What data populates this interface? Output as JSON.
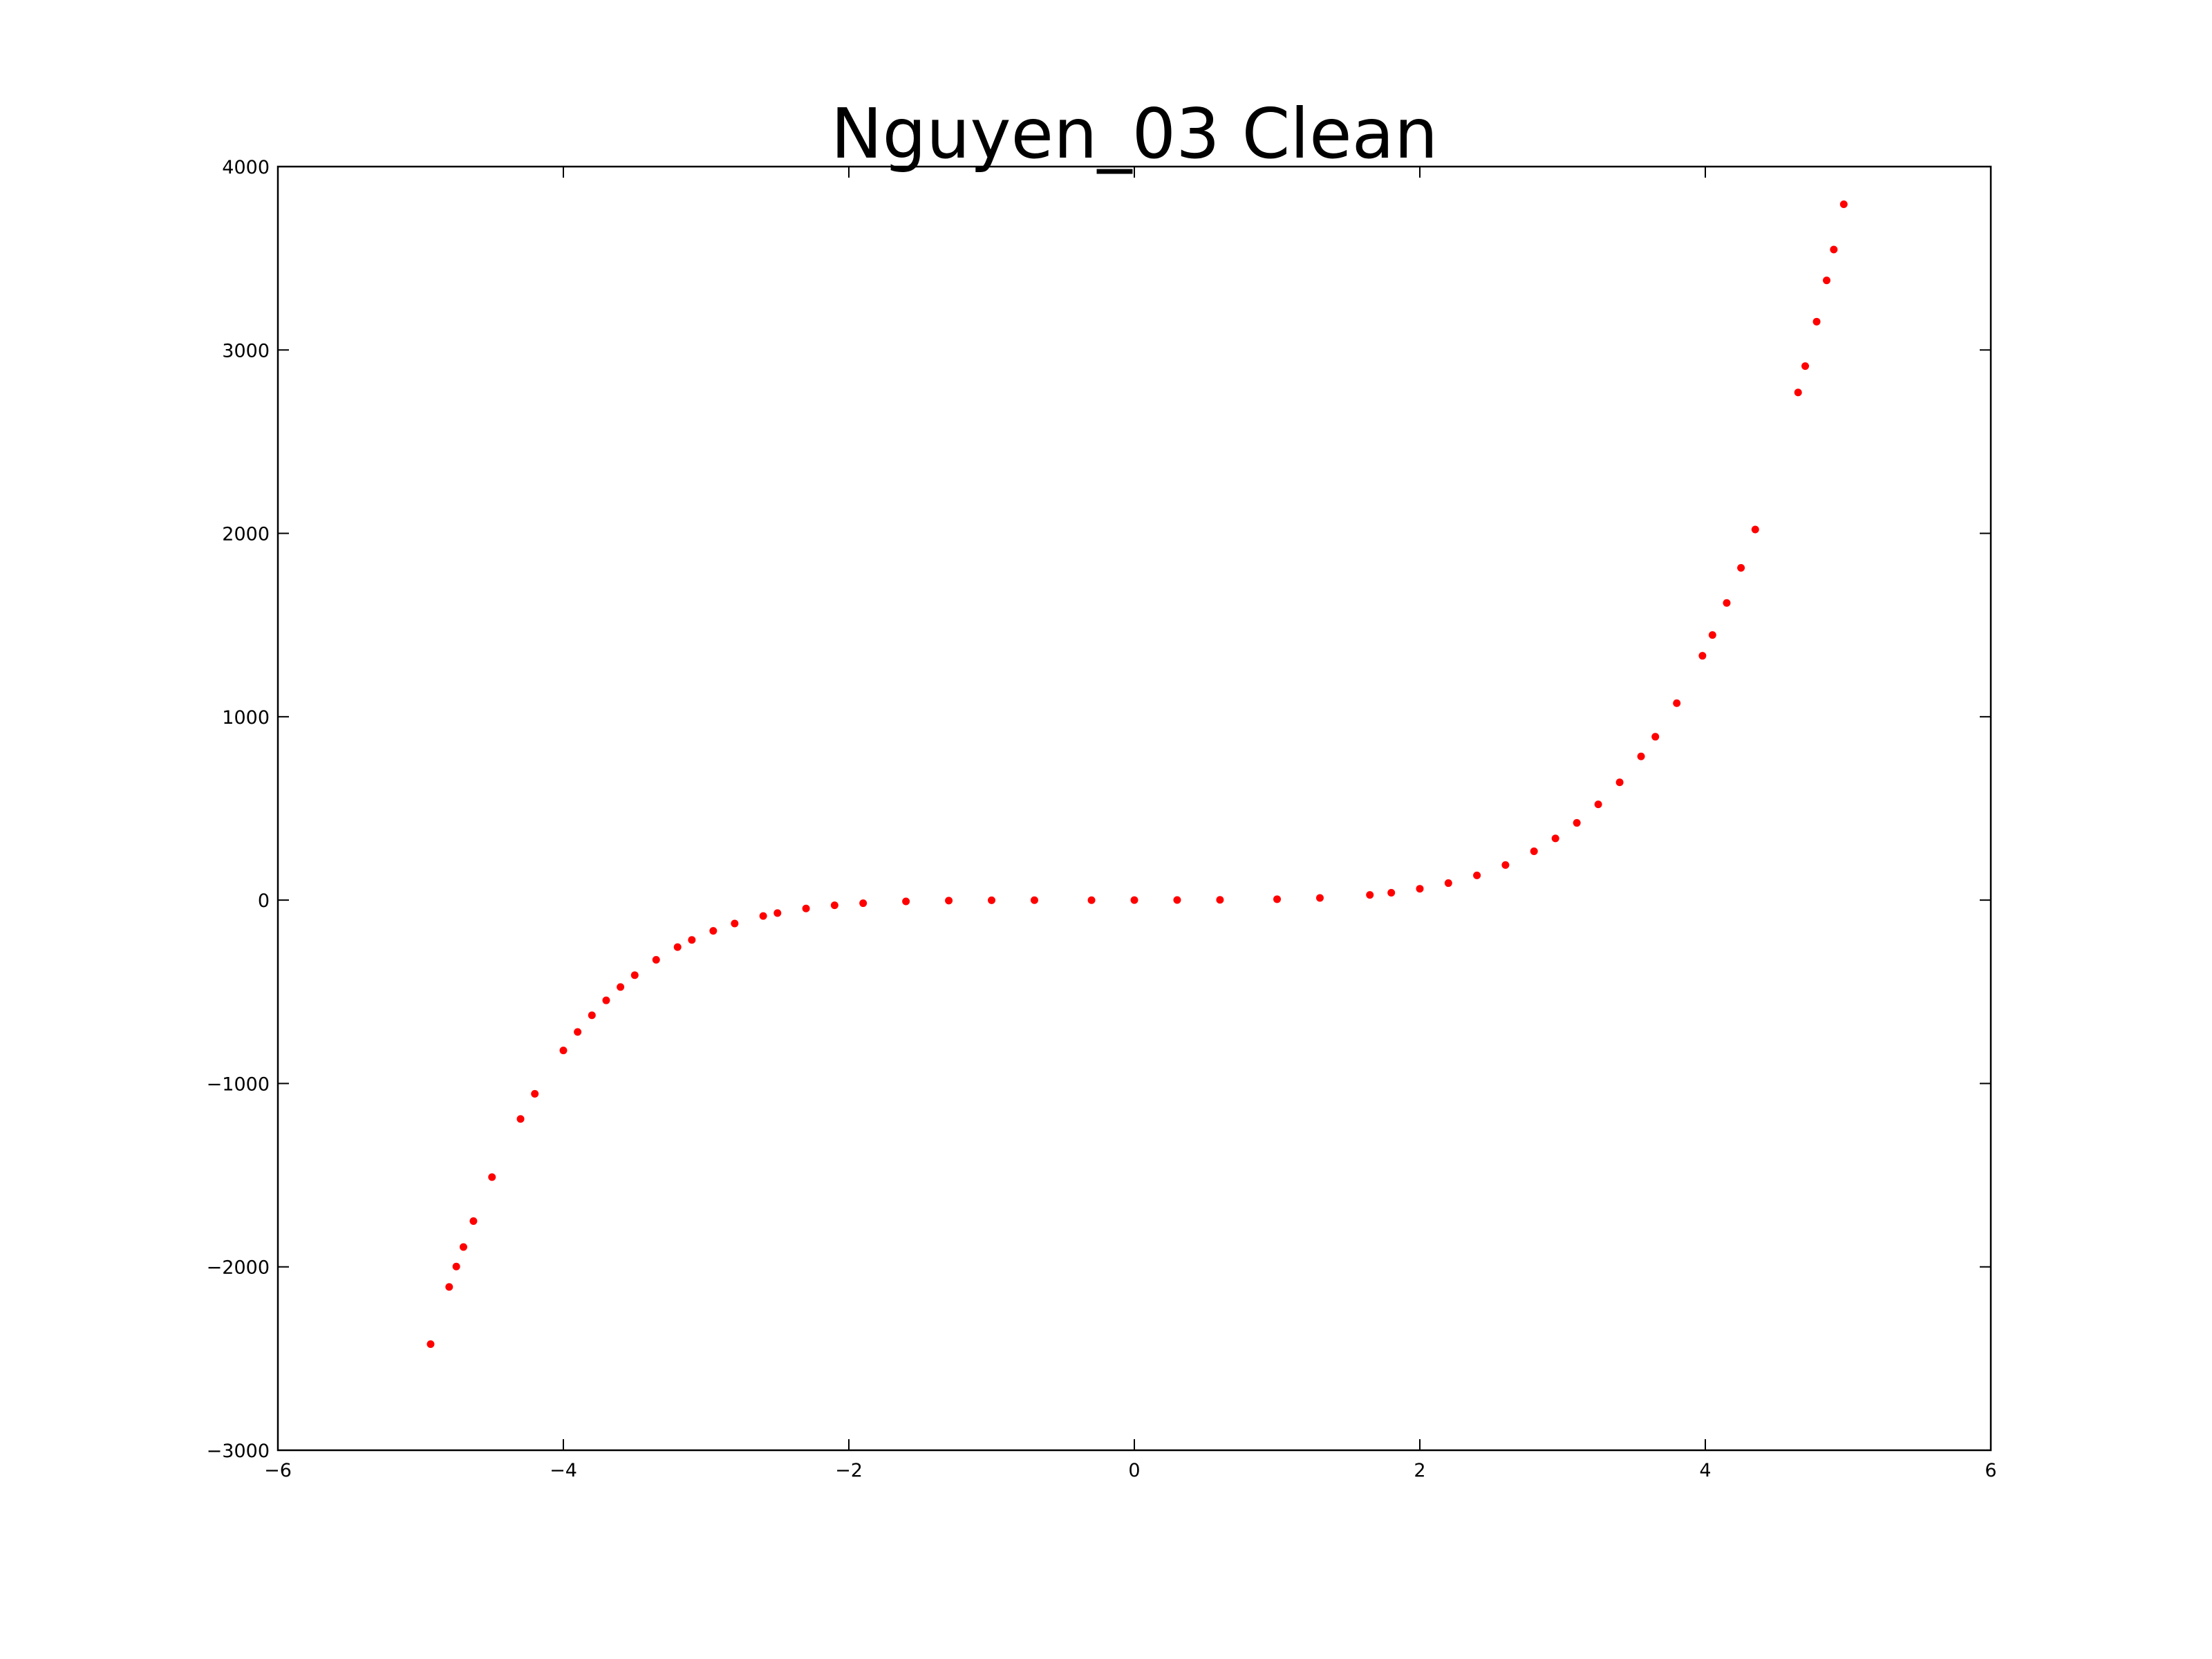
{
  "chart_data": {
    "type": "scatter",
    "title": "Nguyen_03 Clean",
    "series": [
      {
        "color": "#ff0000",
        "x": [
          -4.93,
          -4.8,
          -4.75,
          -4.7,
          -4.63,
          -4.5,
          -4.3,
          -4.2,
          -4.0,
          -3.9,
          -3.8,
          -3.7,
          -3.6,
          -3.5,
          -3.35,
          -3.2,
          -3.1,
          -2.95,
          -2.8,
          -2.6,
          -2.5,
          -2.3,
          -2.1,
          -1.9,
          -1.6,
          -1.3,
          -1.0,
          -0.7,
          -0.3,
          0,
          0.3,
          0.6,
          1.0,
          1.3,
          1.65,
          1.8,
          2.0,
          2.2,
          2.4,
          2.6,
          2.8,
          2.95,
          3.1,
          3.25,
          3.4,
          3.55,
          3.65,
          3.8,
          3.98,
          4.05,
          4.15,
          4.25,
          4.35,
          4.65,
          4.7,
          4.78,
          4.85,
          4.9,
          4.97
        ],
        "values": [
          -2421.5,
          -2109.6,
          -1998.4,
          -1891.9,
          -1750.5,
          -1510.6,
          -1193.5,
          -1056.4,
          -820,
          -718.9,
          -628.1,
          -546.7,
          -474,
          -409.3,
          -325.7,
          -256.4,
          -217.2,
          -167.6,
          -127.5,
          -86.5,
          -70.5,
          -45.6,
          -28.3,
          -16.9,
          -7.1,
          -2.7,
          -1,
          -0.48,
          -0.23,
          0,
          0.43,
          1.38,
          5,
          11.76,
          28.5,
          40.3,
          62,
          92.7,
          134.8,
          191.4,
          266.2,
          336.5,
          421.1,
          522.3,
          642.2,
          783.5,
          890.9,
          1074,
          1332.4,
          1445.5,
          1620.5,
          1811.9,
          2021.1,
          2768.3,
          2912,
          3154.4,
          3379.3,
          3547.8,
          3794.7
        ]
      }
    ],
    "xlim": [
      -6,
      6
    ],
    "xticks": [
      {
        "value": -6,
        "label": "−6"
      },
      {
        "value": -4,
        "label": "−4"
      },
      {
        "value": -2,
        "label": "−2"
      },
      0,
      2,
      4,
      6
    ],
    "ylim": [
      -3000,
      4000
    ],
    "yticks": [
      {
        "value": -3000,
        "label": "−3000"
      },
      {
        "value": -2000,
        "label": "−2000"
      },
      {
        "value": -1000,
        "label": "−1000"
      },
      0,
      1000,
      2000,
      3000,
      4000
    ]
  }
}
